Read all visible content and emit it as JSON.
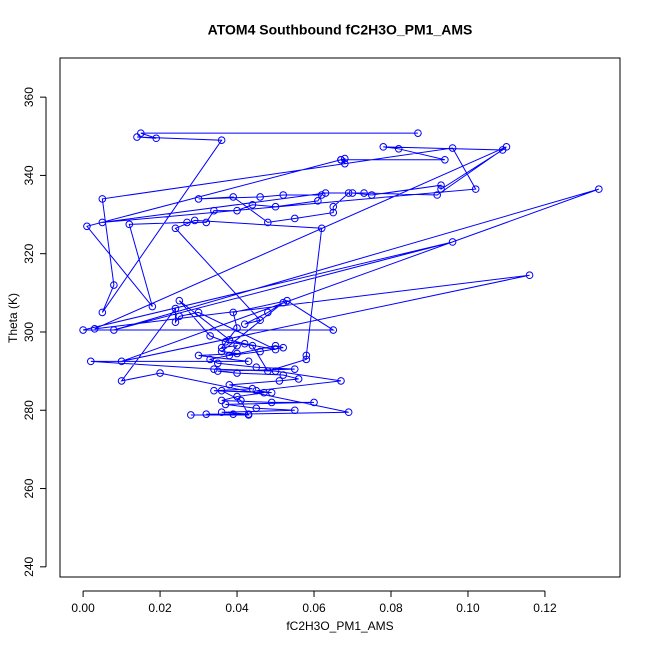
{
  "chart_data": {
    "type": "line",
    "markers": true,
    "title": "ATOM4 Southbound fC2H3O_PM1_AMS",
    "x_label": "fC2H3O_PM1_AMS",
    "y_label": "Theta (K)",
    "color": "#0000ff",
    "xlim": [
      -0.006,
      0.1395
    ],
    "ylim": [
      237.4,
      370
    ],
    "xticks": [
      {
        "value": 0,
        "label": "0.00"
      },
      {
        "value": 0.02,
        "label": "0.02"
      },
      {
        "value": 0.04,
        "label": "0.04"
      },
      {
        "value": 0.06,
        "label": "0.06"
      },
      {
        "value": 0.08,
        "label": "0.08"
      },
      {
        "value": 0.1,
        "label": "0.10"
      },
      {
        "value": 0.12,
        "label": "0.12"
      }
    ],
    "yticks": [
      240,
      260,
      280,
      300,
      320,
      340,
      360
    ],
    "x": [
      0.087,
      0.015,
      0.019,
      0.014,
      0.036,
      0.005,
      0.008,
      0.005,
      0.096,
      0.102,
      0.005,
      0.063,
      0.07,
      0.075,
      0.093,
      0.093,
      0.109,
      0.078,
      0.082,
      0.094,
      0.067,
      0.068,
      0.068,
      0.067,
      0.001,
      0.018,
      0.012,
      0.027,
      0.032,
      0.034,
      0.04,
      0.044,
      0.05,
      0.061,
      0.062,
      0.052,
      0.046,
      0.03,
      0.039,
      0.048,
      0.055,
      0.065,
      0.065,
      0.069,
      0.073,
      0.092,
      0.11,
      0.003,
      0.116,
      0.01,
      0.134,
      0.008,
      0.096,
      0.0,
      0.065,
      0.053,
      0.039,
      0.04,
      0.036,
      0.04,
      0.038,
      0.046,
      0.052,
      0.05,
      0.033,
      0.035,
      0.045,
      0.055,
      0.035,
      0.04,
      0.052,
      0.056,
      0.051,
      0.038,
      0.044,
      0.034,
      0.047,
      0.04,
      0.036,
      0.049,
      0.06,
      0.037,
      0.045,
      0.055,
      0.036,
      0.043,
      0.032,
      0.039,
      0.069,
      0.02,
      0.01,
      0.024,
      0.024,
      0.025,
      0.03,
      0.05,
      0.042,
      0.038,
      0.025,
      0.033,
      0.037,
      0.044,
      0.048,
      0.058,
      0.058,
      0.062,
      0.029,
      0.024,
      0.046,
      0.042,
      0.048,
      0.052,
      0.036,
      0.04,
      0.03,
      0.043,
      0.002,
      0.034,
      0.05,
      0.067,
      0.045,
      0.049,
      0.036,
      0.041,
      0.043,
      0.028
    ],
    "values": [
      350.8,
      350.8,
      349.5,
      349.8,
      349,
      305,
      312,
      334,
      347,
      336.5,
      328,
      335.5,
      335.5,
      335,
      337.5,
      336.5,
      346.5,
      347.3,
      346.8,
      344,
      344,
      343,
      344.3,
      344,
      327,
      306.5,
      327.5,
      328,
      328,
      331,
      331,
      332.5,
      332,
      333.5,
      335,
      335,
      334.5,
      334,
      334.5,
      328,
      329,
      330.5,
      332,
      335.5,
      335.5,
      335,
      347.3,
      300.8,
      314.5,
      292.5,
      336.5,
      300.5,
      323,
      300.5,
      300.5,
      308,
      305,
      301,
      296,
      296.5,
      294,
      295,
      296,
      296.5,
      293,
      292,
      291,
      290.5,
      290,
      289.5,
      289,
      288,
      287.5,
      286.5,
      285.5,
      285,
      284.5,
      283.5,
      282.5,
      282,
      282,
      281.5,
      280.5,
      280,
      279.5,
      279,
      279,
      279,
      279.5,
      289.5,
      287.5,
      306,
      302.5,
      304,
      305,
      295.5,
      297,
      298,
      308,
      299,
      297.5,
      296.5,
      290,
      293,
      294,
      326.5,
      328.5,
      326.5,
      303,
      302,
      305,
      307.5,
      295,
      294.5,
      294,
      292.5,
      292.5,
      290.5,
      290,
      287.5,
      285,
      284.5,
      285,
      282.5,
      278.8,
      278.8
    ]
  }
}
